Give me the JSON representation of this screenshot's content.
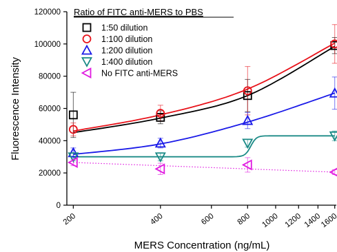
{
  "chart_data": {
    "type": "scatter",
    "xlabel": "MERS Concentration (ng/mL)",
    "ylabel": "Fluorescence Intensity",
    "x_scale": "log",
    "xlim": [
      190,
      1620
    ],
    "ylim": [
      0,
      120000
    ],
    "x_ticks": [
      200,
      400,
      600,
      800,
      1000,
      1200,
      1400,
      1600
    ],
    "y_ticks": [
      0,
      20000,
      40000,
      60000,
      80000,
      100000,
      120000
    ],
    "legend": {
      "title": "Ratio of FITC anti-MERS to PBS",
      "position": "top-left"
    },
    "series": [
      {
        "name": "1:50 dilution",
        "marker": "square",
        "color": "#000000",
        "x": [
          200,
          400,
          800,
          1600
        ],
        "y": [
          56000,
          54500,
          68000,
          99000
        ],
        "err": [
          14000,
          4000,
          10000,
          5000
        ],
        "fit": {
          "shape": "quadratic",
          "y": [
            45000,
            54000,
            68000,
            98500
          ]
        }
      },
      {
        "name": "1:100 dilution",
        "marker": "circle",
        "color": "#e8121a",
        "x": [
          200,
          400,
          800,
          1600
        ],
        "y": [
          47000,
          57000,
          71000,
          100000
        ],
        "err": [
          4000,
          5000,
          15000,
          12000
        ],
        "fit": {
          "shape": "quadratic",
          "y": [
            46000,
            56000,
            72000,
            100500
          ]
        }
      },
      {
        "name": "1:200 dilution",
        "marker": "triangle-up",
        "color": "#1a1ae8",
        "x": [
          200,
          400,
          800,
          1600
        ],
        "y": [
          32500,
          38500,
          52500,
          69500
        ],
        "err": [
          3000,
          3000,
          5000,
          10000
        ],
        "fit": {
          "shape": "quadratic",
          "y": [
            31500,
            38000,
            51500,
            69500
          ]
        }
      },
      {
        "name": "1:400 dilution",
        "marker": "triangle-down",
        "color": "#1a8a86",
        "x": [
          200,
          400,
          800,
          1600
        ],
        "y": [
          30000,
          30000,
          38500,
          43000
        ],
        "err": [
          2500,
          2500,
          2500,
          3000
        ],
        "fit": {
          "shape": "step",
          "low": 30000,
          "high": 43000,
          "center": 820
        }
      },
      {
        "name": "No FITC anti-MERS",
        "marker": "triangle-left",
        "color": "#e01ae0",
        "x": [
          200,
          400,
          800,
          1600
        ],
        "y": [
          26500,
          22500,
          25000,
          20500
        ],
        "err": [
          2000,
          3500,
          4500,
          1500
        ],
        "fit": {
          "shape": "dotted",
          "y": [
            26500,
            24500,
            22500,
            20500
          ]
        }
      }
    ]
  }
}
